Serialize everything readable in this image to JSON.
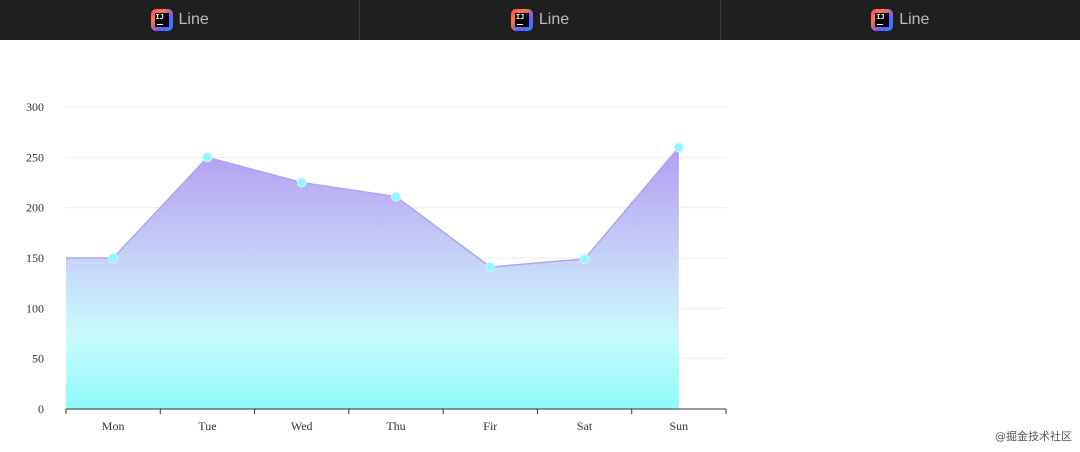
{
  "tabs": [
    {
      "label": "Line",
      "icon": "intellij-idea-icon"
    },
    {
      "label": "Line",
      "icon": "intellij-idea-icon"
    },
    {
      "label": "Line",
      "icon": "intellij-idea-icon"
    }
  ],
  "chart_data": {
    "type": "area",
    "categories": [
      "Mon",
      "Tue",
      "Wed",
      "Thu",
      "Fir",
      "Sat",
      "Sun"
    ],
    "values": [
      150,
      250,
      225,
      211,
      141,
      149,
      260
    ],
    "ylim": [
      0,
      300
    ],
    "yticks": [
      "0",
      "50",
      "100",
      "150",
      "200",
      "250",
      "300"
    ],
    "grid": true,
    "colors": {
      "area_top": "#b39cf2",
      "area_bottom": "#8ffafa",
      "line": "#b0a4f0",
      "point": "#8ff6ff"
    }
  },
  "watermark": "@掘金技术社区"
}
